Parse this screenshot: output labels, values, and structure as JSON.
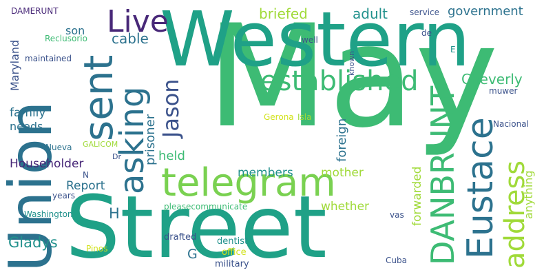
{
  "palette": {
    "dark_purple": "#482878",
    "indigo": "#3b528b",
    "blue": "#2c728e",
    "teal": "#21918c",
    "green_teal": "#1fa187",
    "green": "#3dbb74",
    "light_green": "#7ad151",
    "yellow_green": "#a0da39",
    "yellow": "#d2e21b"
  },
  "words": [
    {
      "text": "May",
      "color": "#3dbb74"
    },
    {
      "text": "Street",
      "color": "#1fa187"
    },
    {
      "text": "Western",
      "color": "#1fa187"
    },
    {
      "text": "Union",
      "color": "#2c728e"
    },
    {
      "text": "telegram",
      "color": "#7ad151"
    },
    {
      "text": "sent",
      "color": "#2c728e"
    },
    {
      "text": "asking",
      "color": "#2c728e"
    },
    {
      "text": "Eustace",
      "color": "#2c728e"
    },
    {
      "text": "DANBRUNT",
      "color": "#3dbb74"
    },
    {
      "text": "address",
      "color": "#a0da39"
    },
    {
      "text": "established",
      "color": "#3dbb74"
    },
    {
      "text": "Live",
      "color": "#482878"
    },
    {
      "text": "Jason",
      "color": "#3b528b"
    },
    {
      "text": "Householder",
      "color": "#482878"
    },
    {
      "text": "Cheverly",
      "color": "#3dbb74"
    },
    {
      "text": "Report",
      "color": "#2c728e"
    },
    {
      "text": "Gladys",
      "color": "#21918c"
    },
    {
      "text": "government",
      "color": "#2c728e"
    },
    {
      "text": "family",
      "color": "#2c728e"
    },
    {
      "text": "briefed",
      "color": "#a0da39"
    },
    {
      "text": "adult",
      "color": "#21918c"
    },
    {
      "text": "cable",
      "color": "#2c728e"
    },
    {
      "text": "members",
      "color": "#21918c"
    },
    {
      "text": "held",
      "color": "#3dbb74"
    },
    {
      "text": "mother",
      "color": "#a0da39"
    },
    {
      "text": "whether",
      "color": "#a0da39"
    },
    {
      "text": "forwarded",
      "color": "#a0da39"
    },
    {
      "text": "foreign",
      "color": "#2c728e"
    },
    {
      "text": "prisoner",
      "color": "#2c728e"
    },
    {
      "text": "Maryland",
      "color": "#3b528b"
    },
    {
      "text": "needs",
      "color": "#2c728e"
    },
    {
      "text": "anything",
      "color": "#a0da39"
    },
    {
      "text": "son",
      "color": "#2c728e"
    },
    {
      "text": "H",
      "color": "#2c728e"
    },
    {
      "text": "G",
      "color": "#2c728e"
    },
    {
      "text": "DAMERUNT",
      "color": "#482878"
    },
    {
      "text": "Reclusorio",
      "color": "#3dbb74"
    },
    {
      "text": "maintained",
      "color": "#3b528b"
    },
    {
      "text": "service",
      "color": "#3b528b"
    },
    {
      "text": "well",
      "color": "#3b528b"
    },
    {
      "text": "known",
      "color": "#3b528b"
    },
    {
      "text": "de",
      "color": "#3b528b"
    },
    {
      "text": "E",
      "color": "#21918c"
    },
    {
      "text": "muwer",
      "color": "#3b528b"
    },
    {
      "text": "Nacional",
      "color": "#3b528b"
    },
    {
      "text": "Gerona",
      "color": "#d2e21b"
    },
    {
      "text": "Isla",
      "color": "#a0da39"
    },
    {
      "text": "Nueva",
      "color": "#2c728e"
    },
    {
      "text": "GALICOM",
      "color": "#a0da39"
    },
    {
      "text": "Dr",
      "color": "#3b528b"
    },
    {
      "text": "N",
      "color": "#3b528b"
    },
    {
      "text": "years",
      "color": "#3b528b"
    },
    {
      "text": "Washington",
      "color": "#21918c"
    },
    {
      "text": "pleasecommunicate",
      "color": "#3dbb74"
    },
    {
      "text": "vas",
      "color": "#3b528b"
    },
    {
      "text": "drafted",
      "color": "#3b528b"
    },
    {
      "text": "dentist",
      "color": "#21918c"
    },
    {
      "text": "office",
      "color": "#d2e21b"
    },
    {
      "text": "military",
      "color": "#3b528b"
    },
    {
      "text": "Cuba",
      "color": "#3b528b"
    },
    {
      "text": "Pinos",
      "color": "#d2e21b"
    }
  ]
}
